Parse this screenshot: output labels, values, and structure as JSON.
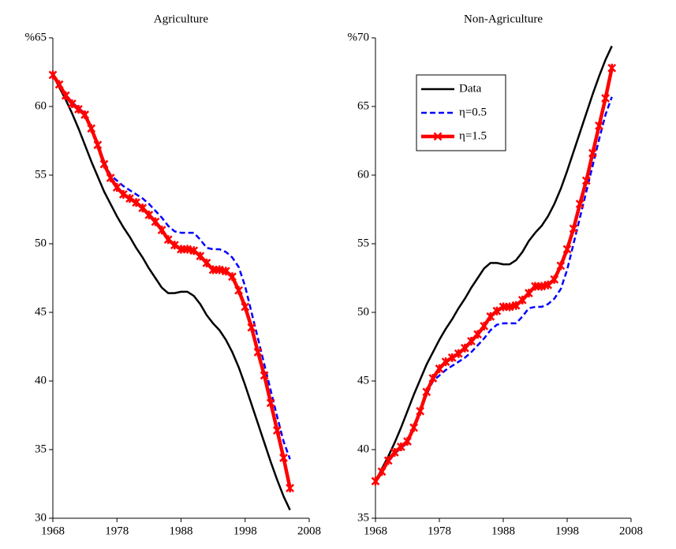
{
  "chart_data": [
    {
      "type": "line",
      "title": "Agriculture",
      "x": [
        1968,
        1969,
        1970,
        1971,
        1972,
        1973,
        1974,
        1975,
        1976,
        1977,
        1978,
        1979,
        1980,
        1981,
        1982,
        1983,
        1984,
        1985,
        1986,
        1987,
        1988,
        1989,
        1990,
        1991,
        1992,
        1993,
        1994,
        1995,
        1996,
        1997,
        1998,
        1999,
        2000,
        2001,
        2002,
        2003,
        2004,
        2005
      ],
      "series": [
        {
          "color": "#000000",
          "style": "solid",
          "values": [
            62.3,
            61.4,
            60.5,
            59.5,
            58.4,
            57.2,
            56.0,
            54.9,
            53.8,
            52.9,
            52.0,
            51.2,
            50.5,
            49.7,
            49.0,
            48.2,
            47.5,
            46.8,
            46.4,
            46.4,
            46.5,
            46.5,
            46.2,
            45.6,
            44.8,
            44.2,
            43.7,
            43.0,
            42.1,
            41.0,
            39.7,
            38.3,
            36.9,
            35.5,
            34.1,
            32.8,
            31.6,
            30.6
          ]
        },
        {
          "color": "#0000ff",
          "style": "dashed",
          "values": [
            62.3,
            61.6,
            60.9,
            60.3,
            59.9,
            59.5,
            58.5,
            57.3,
            56.0,
            55.0,
            54.6,
            54.2,
            53.9,
            53.6,
            53.3,
            52.9,
            52.4,
            51.9,
            51.3,
            50.9,
            50.8,
            50.8,
            50.8,
            50.3,
            49.7,
            49.6,
            49.6,
            49.4,
            49.0,
            48.3,
            46.9,
            45.0,
            43.1,
            41.2,
            39.3,
            37.4,
            35.6,
            34.3
          ]
        },
        {
          "color": "#ff0000",
          "style": "marker",
          "values": [
            62.3,
            61.6,
            60.8,
            60.2,
            59.8,
            59.4,
            58.4,
            57.2,
            55.8,
            54.8,
            54.1,
            53.6,
            53.3,
            53.0,
            52.6,
            52.1,
            51.6,
            51.0,
            50.3,
            49.9,
            49.6,
            49.6,
            49.5,
            49.1,
            48.6,
            48.1,
            48.1,
            48.0,
            47.6,
            46.6,
            45.4,
            43.9,
            42.1,
            40.4,
            38.4,
            36.4,
            34.4,
            32.2
          ]
        }
      ],
      "xlim": [
        1968,
        2008
      ],
      "xticks": [
        1968,
        1978,
        1988,
        1998,
        2008
      ],
      "ylim": [
        30,
        65
      ],
      "yticks": [
        30,
        35,
        40,
        45,
        50,
        55,
        60,
        {
          "value": 65,
          "label": "%65"
        }
      ],
      "grid": false
    },
    {
      "type": "line",
      "title": "Non-Agriculture",
      "x": [
        1968,
        1969,
        1970,
        1971,
        1972,
        1973,
        1974,
        1975,
        1976,
        1977,
        1978,
        1979,
        1980,
        1981,
        1982,
        1983,
        1984,
        1985,
        1986,
        1987,
        1988,
        1989,
        1990,
        1991,
        1992,
        1993,
        1994,
        1995,
        1996,
        1997,
        1998,
        1999,
        2000,
        2001,
        2002,
        2003,
        2004,
        2005
      ],
      "series": [
        {
          "name": "Data",
          "color": "#000000",
          "style": "solid",
          "values": [
            37.7,
            38.6,
            39.5,
            40.5,
            41.6,
            42.8,
            44.0,
            45.1,
            46.2,
            47.1,
            48.0,
            48.8,
            49.5,
            50.3,
            51.0,
            51.8,
            52.5,
            53.2,
            53.6,
            53.6,
            53.5,
            53.5,
            53.8,
            54.4,
            55.2,
            55.8,
            56.3,
            57.0,
            57.9,
            59.0,
            60.3,
            61.7,
            63.1,
            64.5,
            65.9,
            67.2,
            68.4,
            69.4
          ]
        },
        {
          "name": "η=0.5",
          "color": "#0000ff",
          "style": "dashed",
          "values": [
            37.7,
            38.4,
            39.1,
            39.7,
            40.1,
            40.5,
            41.5,
            42.7,
            44.0,
            45.0,
            45.4,
            45.8,
            46.1,
            46.4,
            46.7,
            47.1,
            47.6,
            48.1,
            48.7,
            49.1,
            49.2,
            49.2,
            49.2,
            49.7,
            50.3,
            50.4,
            50.4,
            50.6,
            51.0,
            51.7,
            53.1,
            55.0,
            56.9,
            58.8,
            60.7,
            62.6,
            64.4,
            65.7
          ]
        },
        {
          "name": "η=1.5",
          "color": "#ff0000",
          "style": "marker",
          "values": [
            37.7,
            38.4,
            39.2,
            39.8,
            40.2,
            40.6,
            41.6,
            42.8,
            44.2,
            45.2,
            45.9,
            46.4,
            46.7,
            47.0,
            47.4,
            47.9,
            48.4,
            49.0,
            49.7,
            50.1,
            50.4,
            50.4,
            50.5,
            50.9,
            51.4,
            51.9,
            51.9,
            52.0,
            52.4,
            53.4,
            54.6,
            56.1,
            57.9,
            59.6,
            61.6,
            63.6,
            65.6,
            67.8
          ]
        }
      ],
      "xlim": [
        1968,
        2008
      ],
      "xticks": [
        1968,
        1978,
        1988,
        1998,
        2008
      ],
      "ylim": [
        35,
        70
      ],
      "yticks": [
        35,
        40,
        45,
        50,
        55,
        60,
        65,
        {
          "value": 70,
          "label": "%70"
        }
      ],
      "grid": false,
      "legend": "upper left"
    }
  ]
}
